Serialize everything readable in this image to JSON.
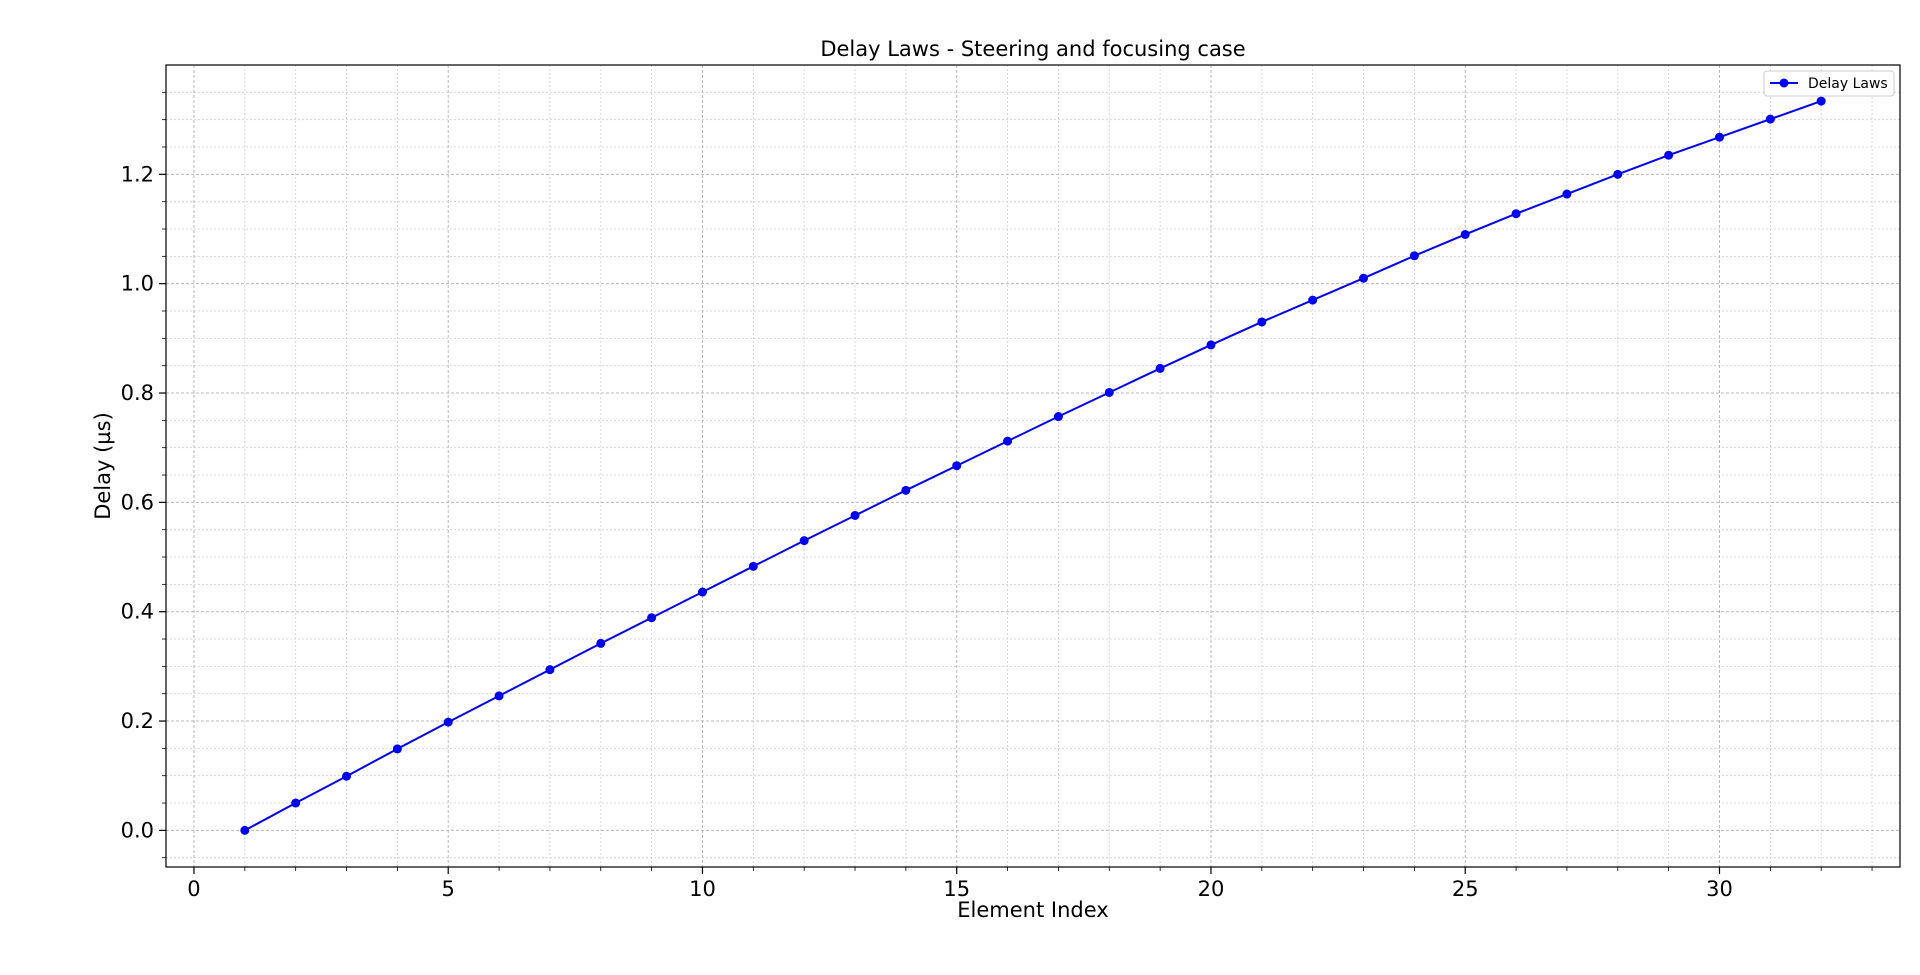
{
  "chart_data": {
    "type": "line",
    "title": "Delay Laws - Steering and focusing case",
    "xlabel": "Element Index",
    "ylabel": "Delay (µs)",
    "xlim": [
      -0.55,
      33.55
    ],
    "ylim": [
      -0.067,
      1.4
    ],
    "xticks": [
      0,
      5,
      10,
      15,
      20,
      25,
      30
    ],
    "xtick_labels": [
      "0",
      "5",
      "10",
      "15",
      "20",
      "25",
      "30"
    ],
    "yticks": [
      0.0,
      0.2,
      0.4,
      0.6,
      0.8,
      1.0,
      1.2
    ],
    "ytick_labels": [
      "0.0",
      "0.2",
      "0.4",
      "0.6",
      "0.8",
      "1.0",
      "1.2"
    ],
    "grid": true,
    "minor_grid": true,
    "legend_position": "top-right",
    "series": [
      {
        "name": "Delay Laws",
        "color": "#0000ff",
        "marker": "circle",
        "x": [
          1,
          2,
          3,
          4,
          5,
          6,
          7,
          8,
          9,
          10,
          11,
          12,
          13,
          14,
          15,
          16,
          17,
          18,
          19,
          20,
          21,
          22,
          23,
          24,
          25,
          26,
          27,
          28,
          29,
          30,
          31,
          32
        ],
        "y": [
          0.0,
          0.05,
          0.099,
          0.149,
          0.198,
          0.246,
          0.294,
          0.342,
          0.389,
          0.436,
          0.483,
          0.53,
          0.576,
          0.622,
          0.667,
          0.712,
          0.757,
          0.801,
          0.845,
          0.888,
          0.93,
          0.97,
          1.01,
          1.051,
          1.09,
          1.128,
          1.164,
          1.2,
          1.235,
          1.268,
          1.301,
          1.334
        ]
      }
    ]
  }
}
